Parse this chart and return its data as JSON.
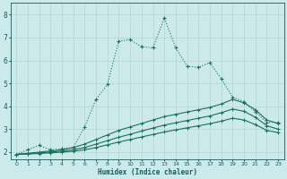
{
  "xlabel": "Humidex (Indice chaleur)",
  "ylabel": "",
  "xlim": [
    -0.5,
    23.5
  ],
  "ylim": [
    1.7,
    8.5
  ],
  "background_color": "#cceaea",
  "grid_color": "#b8d8d8",
  "line_color": "#1a7060",
  "xticks": [
    0,
    1,
    2,
    3,
    4,
    5,
    6,
    7,
    8,
    9,
    10,
    11,
    12,
    13,
    14,
    15,
    16,
    17,
    18,
    19,
    20,
    21,
    22,
    23
  ],
  "yticks": [
    2,
    3,
    4,
    5,
    6,
    7,
    8
  ],
  "line1_x": [
    0,
    1,
    2,
    3,
    4,
    5,
    6,
    7,
    8,
    9,
    10,
    11,
    12,
    13,
    14,
    15,
    16,
    17,
    18,
    19,
    20,
    21,
    22,
    23
  ],
  "line1_y": [
    1.9,
    2.1,
    2.3,
    2.1,
    2.15,
    2.2,
    3.1,
    4.3,
    4.95,
    6.85,
    6.9,
    6.6,
    6.55,
    7.85,
    6.55,
    5.75,
    5.7,
    5.9,
    5.2,
    4.4,
    4.2,
    3.75,
    3.3,
    3.3
  ],
  "line2_x": [
    0,
    1,
    2,
    3,
    4,
    5,
    6,
    7,
    8,
    9,
    10,
    11,
    12,
    13,
    14,
    15,
    16,
    17,
    18,
    19,
    20,
    21,
    22,
    23
  ],
  "line2_y": [
    1.9,
    1.95,
    2.0,
    2.05,
    2.1,
    2.2,
    2.35,
    2.55,
    2.75,
    2.95,
    3.1,
    3.25,
    3.4,
    3.55,
    3.65,
    3.75,
    3.85,
    3.95,
    4.1,
    4.3,
    4.15,
    3.85,
    3.4,
    3.25
  ],
  "line3_x": [
    0,
    1,
    2,
    3,
    4,
    5,
    6,
    7,
    8,
    9,
    10,
    11,
    12,
    13,
    14,
    15,
    16,
    17,
    18,
    19,
    20,
    21,
    22,
    23
  ],
  "line3_y": [
    1.9,
    1.93,
    1.96,
    2.0,
    2.05,
    2.1,
    2.2,
    2.35,
    2.5,
    2.65,
    2.78,
    2.92,
    3.05,
    3.18,
    3.28,
    3.38,
    3.48,
    3.58,
    3.72,
    3.88,
    3.78,
    3.52,
    3.15,
    3.0
  ],
  "line4_x": [
    0,
    1,
    2,
    3,
    4,
    5,
    6,
    7,
    8,
    9,
    10,
    11,
    12,
    13,
    14,
    15,
    16,
    17,
    18,
    19,
    20,
    21,
    22,
    23
  ],
  "line4_y": [
    1.9,
    1.92,
    1.94,
    1.97,
    2.0,
    2.04,
    2.1,
    2.2,
    2.32,
    2.44,
    2.55,
    2.66,
    2.77,
    2.88,
    2.97,
    3.06,
    3.15,
    3.24,
    3.35,
    3.48,
    3.4,
    3.2,
    2.95,
    2.85
  ]
}
